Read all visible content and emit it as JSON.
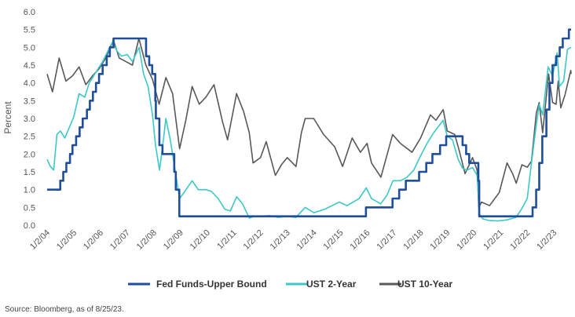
{
  "chart_data": {
    "type": "line",
    "title": "",
    "xlabel": "",
    "ylabel": "Percent",
    "ylim": [
      0,
      6
    ],
    "yticks": [
      "0.0",
      "0.5",
      "1.0",
      "1.5",
      "2.0",
      "2.5",
      "3.0",
      "3.5",
      "4.0",
      "4.5",
      "5.0",
      "5.5",
      "6.0"
    ],
    "xlim": [
      "1/2/04",
      "8/25/23"
    ],
    "xticks": [
      "1/2/04",
      "1/2/05",
      "1/2/06",
      "1/2/07",
      "1/2/08",
      "1/2/09",
      "1/2/10",
      "1/2/11",
      "1/2/12",
      "1/2/13",
      "1/2/14",
      "1/2/15",
      "1/2/16",
      "1/2/17",
      "1/2/18",
      "1/2/19",
      "1/2/20",
      "1/2/21",
      "1/2/22",
      "1/2/23"
    ],
    "grid": false,
    "legend_position": "bottom",
    "source": "Source: Bloomberg, as of 8/25/23.",
    "series": [
      {
        "name": "Fed Funds-Upper Bound",
        "color": "#1f4e9c",
        "step": true,
        "x": [
          "2004-01-02",
          "2004-06-30",
          "2004-08-10",
          "2004-09-21",
          "2004-11-10",
          "2004-12-14",
          "2005-02-02",
          "2005-03-22",
          "2005-05-03",
          "2005-06-30",
          "2005-08-09",
          "2005-09-20",
          "2005-11-01",
          "2005-12-13",
          "2006-01-31",
          "2006-03-28",
          "2006-05-10",
          "2006-06-29",
          "2007-09-18",
          "2007-10-31",
          "2007-12-11",
          "2008-01-22",
          "2008-01-30",
          "2008-03-18",
          "2008-04-30",
          "2008-10-08",
          "2008-10-29",
          "2008-12-16",
          "2015-12-16",
          "2016-12-14",
          "2017-03-15",
          "2017-06-14",
          "2017-12-13",
          "2018-03-21",
          "2018-06-13",
          "2018-09-26",
          "2018-12-19",
          "2019-07-31",
          "2019-09-18",
          "2019-10-30",
          "2020-03-03",
          "2020-03-15",
          "2022-03-16",
          "2022-05-04",
          "2022-06-15",
          "2022-07-27",
          "2022-09-21",
          "2022-11-02",
          "2022-12-14",
          "2023-02-01",
          "2023-03-22",
          "2023-05-03",
          "2023-07-26",
          "2023-08-25"
        ],
        "values": [
          1.0,
          1.25,
          1.5,
          1.75,
          2.0,
          2.25,
          2.5,
          2.75,
          3.0,
          3.25,
          3.5,
          3.75,
          4.0,
          4.25,
          4.5,
          4.75,
          5.0,
          5.25,
          4.75,
          4.5,
          4.25,
          3.5,
          3.0,
          2.25,
          2.0,
          1.5,
          1.0,
          0.25,
          0.5,
          0.75,
          1.0,
          1.25,
          1.5,
          1.75,
          2.0,
          2.25,
          2.5,
          2.25,
          2.0,
          1.75,
          1.25,
          0.25,
          0.5,
          1.0,
          1.75,
          2.5,
          3.25,
          4.0,
          4.5,
          4.75,
          5.0,
          5.25,
          5.5,
          5.5
        ]
      },
      {
        "name": "UST 2-Year",
        "color": "#3cc8c8",
        "step": false,
        "x": [
          "2004-01-02",
          "2004-02-15",
          "2004-04-01",
          "2004-05-15",
          "2004-07-01",
          "2004-09-01",
          "2004-11-01",
          "2005-01-02",
          "2005-03-15",
          "2005-06-01",
          "2005-08-01",
          "2005-10-01",
          "2005-12-01",
          "2006-02-01",
          "2006-04-01",
          "2006-06-15",
          "2006-08-15",
          "2006-10-15",
          "2007-01-02",
          "2007-03-15",
          "2007-06-15",
          "2007-08-15",
          "2007-10-15",
          "2007-12-15",
          "2008-01-25",
          "2008-03-20",
          "2008-05-15",
          "2008-06-15",
          "2008-08-15",
          "2008-10-15",
          "2008-12-20",
          "2009-03-01",
          "2009-06-10",
          "2009-09-01",
          "2009-12-15",
          "2010-03-01",
          "2010-06-01",
          "2010-09-01",
          "2010-11-15",
          "2011-02-10",
          "2011-05-01",
          "2011-08-01",
          "2011-10-15",
          "2012-01-02",
          "2012-05-01",
          "2012-09-01",
          "2013-01-02",
          "2013-05-01",
          "2013-09-05",
          "2014-01-02",
          "2014-06-01",
          "2014-12-15",
          "2015-04-01",
          "2015-09-15",
          "2015-12-20",
          "2016-03-01",
          "2016-07-05",
          "2016-10-01",
          "2016-12-20",
          "2017-04-01",
          "2017-07-01",
          "2017-10-01",
          "2018-01-02",
          "2018-04-01",
          "2018-07-01",
          "2018-11-08",
          "2019-01-02",
          "2019-03-15",
          "2019-06-01",
          "2019-08-01",
          "2019-10-01",
          "2019-12-15",
          "2020-02-15",
          "2020-03-20",
          "2020-05-01",
          "2020-08-01",
          "2020-12-01",
          "2021-04-01",
          "2021-08-01",
          "2021-10-15",
          "2022-01-02",
          "2022-03-01",
          "2022-05-01",
          "2022-06-15",
          "2022-08-01",
          "2022-10-15",
          "2022-12-15",
          "2023-02-15",
          "2023-03-20",
          "2023-05-15",
          "2023-07-07",
          "2023-08-25"
        ],
        "values": [
          1.85,
          1.65,
          1.55,
          2.55,
          2.65,
          2.45,
          2.75,
          3.05,
          3.7,
          3.6,
          4.0,
          4.2,
          4.4,
          4.6,
          4.85,
          5.15,
          4.9,
          4.75,
          4.8,
          4.6,
          5.0,
          4.25,
          3.9,
          3.1,
          2.25,
          1.55,
          2.45,
          3.0,
          2.4,
          1.6,
          0.75,
          0.95,
          1.25,
          1.0,
          1.0,
          0.95,
          0.75,
          0.45,
          0.4,
          0.8,
          0.6,
          0.2,
          0.25,
          0.25,
          0.27,
          0.22,
          0.25,
          0.22,
          0.5,
          0.35,
          0.45,
          0.65,
          0.55,
          0.75,
          1.05,
          0.75,
          0.6,
          0.85,
          1.25,
          1.25,
          1.35,
          1.55,
          1.95,
          2.3,
          2.6,
          2.95,
          2.5,
          2.4,
          1.85,
          1.6,
          1.55,
          1.62,
          1.4,
          0.3,
          0.18,
          0.13,
          0.12,
          0.15,
          0.22,
          0.45,
          0.75,
          1.75,
          2.75,
          3.4,
          3.1,
          4.45,
          4.2,
          4.85,
          3.9,
          4.05,
          4.95,
          5.0
        ]
      },
      {
        "name": "UST 10-Year",
        "color": "#58585a",
        "step": false,
        "x": [
          "2004-01-02",
          "2004-03-15",
          "2004-06-15",
          "2004-09-15",
          "2004-12-15",
          "2005-03-15",
          "2005-06-15",
          "2005-09-15",
          "2005-12-15",
          "2006-03-15",
          "2006-06-28",
          "2006-09-15",
          "2006-12-15",
          "2007-03-15",
          "2007-06-12",
          "2007-09-15",
          "2007-12-15",
          "2008-03-15",
          "2008-06-15",
          "2008-09-15",
          "2008-12-20",
          "2009-03-15",
          "2009-06-10",
          "2009-09-15",
          "2009-12-15",
          "2010-04-05",
          "2010-08-01",
          "2010-10-08",
          "2011-01-02",
          "2011-02-08",
          "2011-05-15",
          "2011-08-01",
          "2011-09-22",
          "2012-01-02",
          "2012-03-20",
          "2012-07-24",
          "2012-10-15",
          "2013-01-02",
          "2013-05-02",
          "2013-07-15",
          "2013-09-05",
          "2013-12-31",
          "2014-05-15",
          "2014-10-15",
          "2015-01-30",
          "2015-06-10",
          "2015-10-01",
          "2015-12-31",
          "2016-03-01",
          "2016-07-08",
          "2016-12-15",
          "2017-04-01",
          "2017-09-07",
          "2018-01-02",
          "2018-05-17",
          "2018-08-01",
          "2018-11-08",
          "2019-01-02",
          "2019-04-15",
          "2019-06-15",
          "2019-09-03",
          "2019-12-15",
          "2020-02-15",
          "2020-03-09",
          "2020-04-15",
          "2020-08-04",
          "2020-12-15",
          "2021-03-31",
          "2021-06-15",
          "2021-08-04",
          "2021-10-21",
          "2022-01-02",
          "2022-03-01",
          "2022-05-06",
          "2022-06-14",
          "2022-08-01",
          "2022-10-21",
          "2022-12-15",
          "2023-02-01",
          "2023-03-02",
          "2023-04-06",
          "2023-06-01",
          "2023-08-21",
          "2023-08-25"
        ],
        "values": [
          4.25,
          3.75,
          4.7,
          4.05,
          4.2,
          4.45,
          3.95,
          4.2,
          4.4,
          4.7,
          5.2,
          4.7,
          4.6,
          4.5,
          5.25,
          4.5,
          4.1,
          3.4,
          4.15,
          3.7,
          2.15,
          2.95,
          3.9,
          3.4,
          3.6,
          3.95,
          2.9,
          2.4,
          3.3,
          3.7,
          3.2,
          2.6,
          1.75,
          1.9,
          2.35,
          1.4,
          1.7,
          1.9,
          1.65,
          2.6,
          3.0,
          3.0,
          2.55,
          2.2,
          1.65,
          2.45,
          2.05,
          2.3,
          1.75,
          1.35,
          2.55,
          2.3,
          2.05,
          2.45,
          3.1,
          2.95,
          3.25,
          2.65,
          2.55,
          2.1,
          1.45,
          1.9,
          1.55,
          0.5,
          0.65,
          0.55,
          0.92,
          1.75,
          1.45,
          1.18,
          1.7,
          1.63,
          1.8,
          3.15,
          3.45,
          2.6,
          4.25,
          3.45,
          3.4,
          4.05,
          3.3,
          3.65,
          4.35,
          4.25
        ]
      }
    ]
  }
}
